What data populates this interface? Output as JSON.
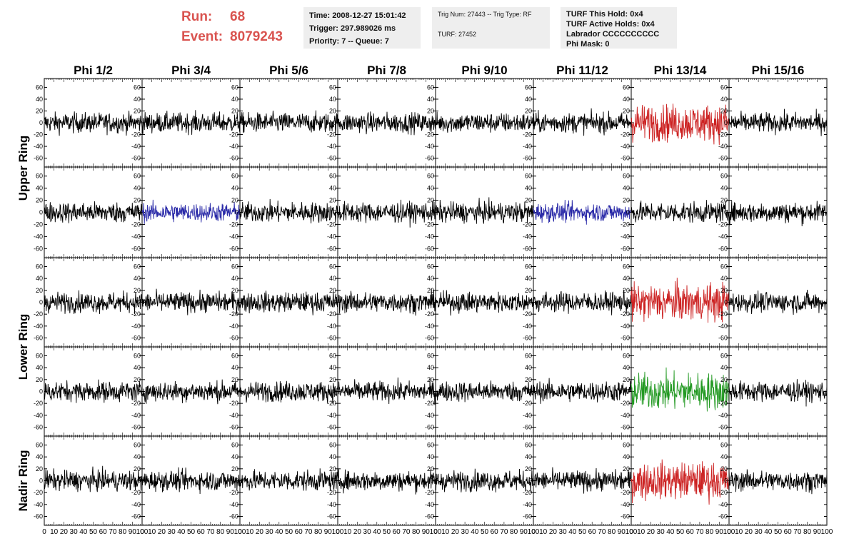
{
  "header": {
    "run_label": "Run:",
    "run_value": "68",
    "event_label": "Event:",
    "event_value": "8079243",
    "time": "Time: 2008-12-27 15:01:42",
    "trigger": "Trigger: 297.989026 ms",
    "priority": "Priority: 7 -- Queue: 7",
    "trig_num": "Trig Num: 27443 -- Trig Type: RF",
    "turf_num": "TURF: 27452",
    "turf_this_hold": "TURF This Hold: 0x4",
    "turf_active_holds": "TURF Active Holds: 0x4",
    "labrador": "Labrador CCCCCCCCCC",
    "phi_mask": "Phi Mask: 0"
  },
  "colors": {
    "header_red": "#d9534f",
    "trace_default": "#000000",
    "trace_red": "#cc2222",
    "trace_blue": "#2a2aa8",
    "trace_green": "#229922"
  },
  "chart_data": {
    "type": "line",
    "columns": [
      "Phi 1/2",
      "Phi 3/4",
      "Phi 5/6",
      "Phi 7/8",
      "Phi 9/10",
      "Phi 11/12",
      "Phi 13/14",
      "Phi 15/16"
    ],
    "ring_labels": [
      "Upper Ring",
      "Lower Ring",
      "Nadir Ring"
    ],
    "rows": 5,
    "xlim": [
      0,
      100
    ],
    "ylim": [
      -75,
      75
    ],
    "x_tick_labels": [
      "0",
      "10",
      "20",
      "30",
      "40",
      "50",
      "60",
      "70",
      "80",
      "90",
      "100"
    ],
    "y_tick_labels": [
      "60",
      "40",
      "20",
      "0",
      "-20",
      "-40",
      "-60"
    ],
    "y_tick_values": [
      60,
      40,
      20,
      0,
      -20,
      -40,
      -60
    ],
    "highlights": [
      {
        "row": 0,
        "col": 6,
        "color": "red"
      },
      {
        "row": 1,
        "col": 1,
        "color": "blue"
      },
      {
        "row": 1,
        "col": 5,
        "color": "blue"
      },
      {
        "row": 2,
        "col": 6,
        "color": "red"
      },
      {
        "row": 3,
        "col": 6,
        "color": "green"
      },
      {
        "row": 4,
        "col": 6,
        "color": "red"
      }
    ]
  }
}
